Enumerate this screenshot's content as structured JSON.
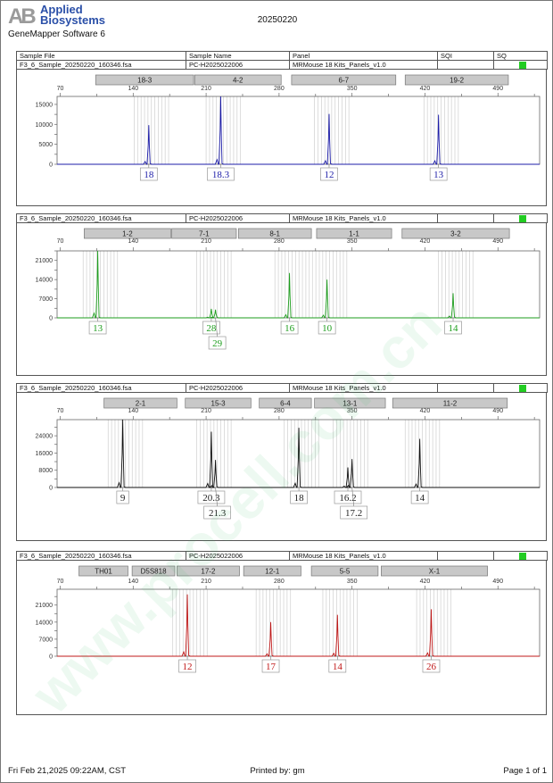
{
  "header": {
    "logo_text": "AB",
    "brand_line1": "Applied",
    "brand_line2": "Biosystems",
    "app_name": "GeneMapper Software 6",
    "run_id": "20250220"
  },
  "columns": {
    "sample_file": "Sample File",
    "sample_name": "Sample Name",
    "panel": "Panel",
    "sqi": "SQI",
    "sq": "SQ"
  },
  "watermark": "www.procell.com.cn",
  "footer": {
    "datetime": "Fri Feb 21,2025 09:22AM, CST",
    "printed_by": "Printed by: gm",
    "page": "Page 1 of 1"
  },
  "chart_data": [
    {
      "type": "line",
      "sample_file": "F3_6_Sample_20250220_160346.fsa",
      "sample_name": "PC-H2025022006",
      "panel": "MRMouse 18 Kits_Panels_v1.0",
      "sq_status": "pass",
      "dye_color": "#1c1ca8",
      "xlim": [
        67,
        530
      ],
      "x_ticks": [
        70,
        140,
        210,
        280,
        350,
        420,
        490
      ],
      "ylim": [
        0,
        17000
      ],
      "y_ticks": [
        0,
        5000,
        10000,
        15000
      ],
      "loci": [
        {
          "name": "18-3",
          "range": [
            104,
            198
          ]
        },
        {
          "name": "4-2",
          "range": [
            199,
            282
          ]
        },
        {
          "name": "6-7",
          "range": [
            292,
            392
          ]
        },
        {
          "name": "19-2",
          "range": [
            401,
            500
          ]
        }
      ],
      "peaks": [
        {
          "size": 155,
          "height": 9800,
          "allele": "18"
        },
        {
          "size": 224,
          "height": 17000,
          "allele": "18.3"
        },
        {
          "size": 328,
          "height": 12600,
          "allele": "12"
        },
        {
          "size": 433,
          "height": 12400,
          "allele": "13"
        }
      ]
    },
    {
      "type": "line",
      "sample_file": "F3_6_Sample_20250220_160346.fsa",
      "sample_name": "PC-H2025022006",
      "panel": "MRMouse 18 Kits_Panels_v1.0",
      "sq_status": "pass",
      "dye_color": "#1e9e1e",
      "xlim": [
        67,
        530
      ],
      "x_ticks": [
        70,
        140,
        210,
        280,
        350,
        420,
        490
      ],
      "ylim": [
        0,
        24500
      ],
      "y_ticks": [
        0,
        7000,
        14000,
        21000
      ],
      "loci": [
        {
          "name": "1-2",
          "range": [
            93,
            176
          ]
        },
        {
          "name": "7-1",
          "range": [
            177,
            239
          ]
        },
        {
          "name": "8-1",
          "range": [
            241,
            311
          ]
        },
        {
          "name": "1-1",
          "range": [
            316,
            388
          ]
        },
        {
          "name": "3-2",
          "range": [
            398,
            501
          ]
        }
      ],
      "peaks": [
        {
          "size": 106,
          "height": 24500,
          "allele": "13"
        },
        {
          "size": 215,
          "height": 3300,
          "allele": "28"
        },
        {
          "size": 219,
          "height": 3000,
          "allele": "29"
        },
        {
          "size": 290,
          "height": 16400,
          "allele": "16"
        },
        {
          "size": 326,
          "height": 14000,
          "allele": "10"
        },
        {
          "size": 447,
          "height": 9000,
          "allele": "14"
        }
      ]
    },
    {
      "type": "line",
      "sample_file": "F3_6_Sample_20250220_160346.fsa",
      "sample_name": "PC-H2025022006",
      "panel": "MRMouse 18 Kits_Panels_v1.0",
      "sq_status": "pass",
      "dye_color": "#111111",
      "xlim": [
        67,
        530
      ],
      "x_ticks": [
        70,
        140,
        210,
        280,
        350,
        420,
        490
      ],
      "ylim": [
        0,
        31500
      ],
      "y_ticks": [
        0,
        8000,
        16000,
        24000
      ],
      "loci": [
        {
          "name": "2-1",
          "range": [
            112,
            182
          ]
        },
        {
          "name": "15-3",
          "range": [
            190,
            253
          ]
        },
        {
          "name": "6-4",
          "range": [
            261,
            311
          ]
        },
        {
          "name": "13-1",
          "range": [
            314,
            382
          ]
        },
        {
          "name": "11-2",
          "range": [
            389,
            499
          ]
        }
      ],
      "peaks": [
        {
          "size": 130,
          "height": 31500,
          "allele": "9"
        },
        {
          "size": 215,
          "height": 25900,
          "allele": "20.3"
        },
        {
          "size": 219,
          "height": 12800,
          "allele": "21.3"
        },
        {
          "size": 299,
          "height": 27700,
          "allele": "18"
        },
        {
          "size": 346,
          "height": 9300,
          "allele": "16.2"
        },
        {
          "size": 350,
          "height": 13200,
          "allele": "17.2"
        },
        {
          "size": 415,
          "height": 22600,
          "allele": "14"
        }
      ]
    },
    {
      "type": "line",
      "sample_file": "F3_6_Sample_20250220_160346.fsa",
      "sample_name": "PC-H2025022006",
      "panel": "MRMouse 18 Kits_Panels_v1.0",
      "sq_status": "pass",
      "dye_color": "#c01818",
      "xlim": [
        67,
        530
      ],
      "x_ticks": [
        70,
        140,
        210,
        280,
        350,
        420,
        490
      ],
      "ylim": [
        0,
        27500
      ],
      "y_ticks": [
        0,
        7000,
        14000,
        21000
      ],
      "loci": [
        {
          "name": "TH01",
          "range": [
            88,
            135
          ]
        },
        {
          "name": "D5S818",
          "range": [
            139,
            180
          ]
        },
        {
          "name": "17-2",
          "range": [
            182,
            242
          ]
        },
        {
          "name": "12-1",
          "range": [
            246,
            301
          ]
        },
        {
          "name": "5-5",
          "range": [
            311,
            375
          ]
        },
        {
          "name": "X-1",
          "range": [
            378,
            480
          ]
        }
      ],
      "peaks": [
        {
          "size": 192,
          "height": 25400,
          "allele": "12"
        },
        {
          "size": 272,
          "height": 14000,
          "allele": "17"
        },
        {
          "size": 336,
          "height": 17000,
          "allele": "14"
        },
        {
          "size": 426,
          "height": 19300,
          "allele": "26"
        }
      ]
    }
  ]
}
